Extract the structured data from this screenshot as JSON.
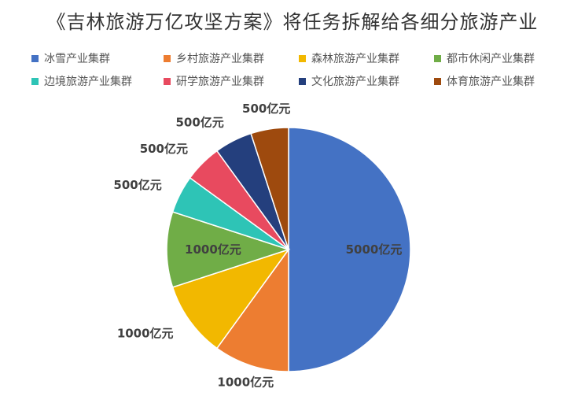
{
  "chart_data": {
    "type": "pie",
    "title": "《吉林旅游万亿攻坚方案》将任务拆解给各细分旅游产业",
    "unit": "亿元",
    "legend_position": "top",
    "categories": [
      "冰雪产业集群",
      "乡村旅游产业集群",
      "森林旅游产业集群",
      "都市休闲产业集群",
      "边境旅游产业集群",
      "研学旅游产业集群",
      "文化旅游产业集群",
      "体育旅游产业集群"
    ],
    "values": [
      5000,
      1000,
      1000,
      1000,
      500,
      500,
      500,
      500
    ],
    "data_labels": [
      "5000亿元",
      "1000亿元",
      "1000亿元",
      "1000亿元",
      "500亿元",
      "500亿元",
      "500亿元",
      "500亿元"
    ],
    "colors": [
      "#4472C4",
      "#ED7D31",
      "#F2B800",
      "#70AD47",
      "#2EC4B6",
      "#E84A5F",
      "#243F7D",
      "#9E4A0E"
    ]
  }
}
